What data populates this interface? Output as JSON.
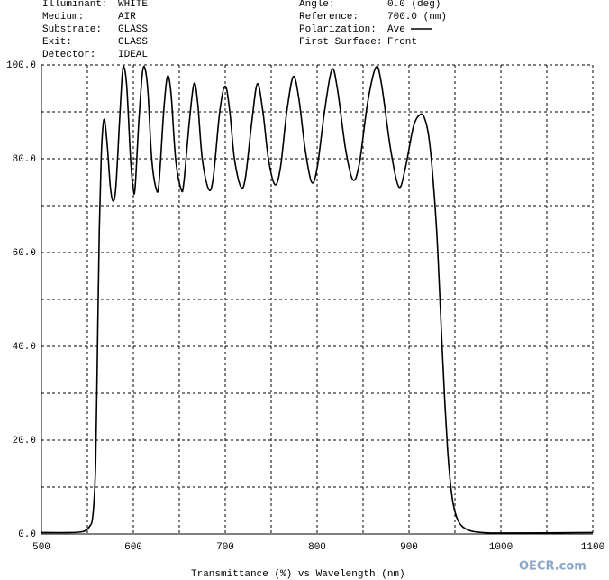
{
  "chart_data": {
    "type": "line",
    "xlabel": "Transmittance (%)   vs   Wavelength (nm)",
    "watermark": "OECR.com",
    "info_left": [
      {
        "label": "Illuminant:",
        "value": "WHITE"
      },
      {
        "label": "Medium:",
        "value": "AIR"
      },
      {
        "label": "Substrate:",
        "value": "GLASS"
      },
      {
        "label": "Exit:",
        "value": "GLASS"
      },
      {
        "label": "Detector:",
        "value": "IDEAL"
      }
    ],
    "info_right": [
      {
        "label": "Angle:",
        "value": "0.0 (deg)"
      },
      {
        "label": "Reference:",
        "value": "700.0 (nm)"
      },
      {
        "label": "Polarization:"
      },
      {
        "label": "First Surface:",
        "value": "Front"
      }
    ],
    "xlim": [
      500,
      1100
    ],
    "xticks": [
      500,
      600,
      700,
      800,
      900,
      1000,
      1100
    ],
    "xminor": [
      550,
      650,
      750,
      850,
      950,
      1050
    ],
    "ylim": [
      0,
      100
    ],
    "yticks": [
      {
        "value": 0,
        "label": "0.0"
      },
      {
        "value": 20,
        "label": "20.0"
      },
      {
        "value": 40,
        "label": "40.0"
      },
      {
        "value": 60,
        "label": "60.0"
      },
      {
        "value": 80,
        "label": "80.0"
      },
      {
        "value": 100,
        "label": "100.0"
      }
    ],
    "yminor": [
      10,
      30,
      50,
      70,
      90
    ],
    "grid": true,
    "x": [
      500,
      530,
      545,
      552,
      556,
      559,
      561,
      563,
      565,
      567,
      569,
      572,
      575,
      578,
      581,
      585,
      588,
      590,
      593,
      597,
      600,
      602,
      606,
      610,
      613,
      616,
      620,
      625,
      628,
      633,
      637,
      641,
      646,
      652,
      655,
      661,
      666,
      670,
      675,
      682,
      687,
      694,
      700,
      705,
      710,
      717,
      722,
      729,
      735,
      741,
      747,
      754,
      760,
      767,
      774,
      780,
      787,
      794,
      800,
      808,
      816,
      822,
      831,
      839,
      846,
      855,
      864,
      870,
      880,
      889,
      896,
      905,
      913,
      918,
      922,
      926,
      930,
      933,
      936,
      939,
      942,
      945,
      948,
      952,
      957,
      965,
      975,
      1000,
      1100
    ],
    "series": [
      {
        "name": "Ave",
        "color": "#000000",
        "values": [
          0.3,
          0.3,
          0.5,
          1.5,
          4,
          15,
          40,
          65,
          80,
          87,
          88,
          82,
          74,
          71,
          74,
          88,
          98,
          99.5,
          95,
          80,
          73.5,
          74,
          88,
          98.5,
          99,
          94,
          80,
          73.5,
          75,
          90,
          97.5,
          94,
          80,
          73.5,
          75,
          88,
          96,
          92,
          80,
          73.5,
          76,
          90,
          95.5,
          90,
          80,
          74,
          76,
          88,
          96,
          90,
          80,
          74.5,
          78,
          90,
          97.5,
          93,
          82,
          75,
          78,
          90,
          99,
          95,
          82,
          75.5,
          79,
          92,
          99.5,
          96,
          82,
          74,
          78,
          87,
          89.5,
          88,
          84,
          76,
          65,
          53,
          40,
          28,
          18,
          11,
          6.5,
          3.5,
          1.8,
          0.8,
          0.4,
          0.2,
          0.3
        ]
      }
    ]
  }
}
